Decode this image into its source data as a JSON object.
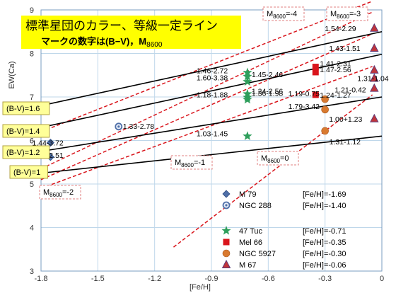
{
  "chart_data": {
    "type": "scatter",
    "title_line1": "標準星団のカラー、等級一定ライン",
    "title_line2": "マークの数字は(B−V)，M",
    "title_line2_sub": "8600",
    "xlabel": "[Fe/H]",
    "ylabel": "EW(Ca)",
    "xlim": [
      -1.8,
      0
    ],
    "ylim": [
      3,
      9
    ],
    "x_ticks": [
      "-1.8",
      "-1.5",
      "-1.2",
      "-0.9",
      "-0.6",
      "-0.3",
      "0"
    ],
    "y_ticks": [
      "3",
      "4",
      "5",
      "6",
      "7",
      "8",
      "9"
    ],
    "grid": true,
    "colors": {
      "M 79": "#4f6fa8",
      "NGC 288": "#4f6fa8",
      "47 Tuc": "#2e9e5b",
      "Mel 66": "#d9141b",
      "NGC 5927": "#d97a30",
      "M 67": "#c0353b",
      "color_lines": "#000000",
      "mag_lines": "#d9141b",
      "title_bg": "#ffff00",
      "bv_bg": "#ffff99"
    },
    "series": [
      {
        "name": "M 79",
        "feh": "[Fe/H]=-1.69",
        "marker": "diamond",
        "points": [
          {
            "x": -1.75,
            "y": 5.95,
            "label": "1.44-3.72"
          },
          {
            "x": -1.75,
            "y": 5.62,
            "label": "1.06-2.51"
          }
        ]
      },
      {
        "name": "NGC 288",
        "feh": "[Fe/H]=-1.40",
        "marker": "circle-dot",
        "points": [
          {
            "x": -1.39,
            "y": 6.32,
            "label": "1.33-2.78"
          }
        ]
      },
      {
        "name": "47 Tuc",
        "feh": "[Fe/H]=-0.71",
        "marker": "star",
        "points": [
          {
            "x": -0.71,
            "y": 7.56,
            "label": "1.46-2.72"
          },
          {
            "x": -0.71,
            "y": 7.47,
            "label": "1.45-2.46"
          },
          {
            "x": -0.71,
            "y": 7.35,
            "label": "1.60-3.38"
          },
          {
            "x": -0.71,
            "y": 7.07,
            "label": "1.24-2.56"
          },
          {
            "x": -0.71,
            "y": 6.99,
            "label": "1.36-1.98"
          },
          {
            "x": -0.71,
            "y": 6.94,
            "label": "1.18-1.88"
          },
          {
            "x": -0.71,
            "y": 6.1,
            "label": "1.03-1.45"
          }
        ]
      },
      {
        "name": "Mel 66",
        "feh": "[Fe/H]=-0.35",
        "marker": "square",
        "points": [
          {
            "x": -0.35,
            "y": 7.69,
            "label": "1.41-2.31"
          },
          {
            "x": -0.35,
            "y": 7.57,
            "label": "1.47-2.56"
          },
          {
            "x": -0.35,
            "y": 7.05,
            "label": "1.24-1.27"
          }
        ]
      },
      {
        "name": "NGC 5927",
        "feh": "[Fe/H]=-0.30",
        "marker": "circle",
        "points": [
          {
            "x": -0.3,
            "y": 6.95,
            "label": "1.19-0.75"
          },
          {
            "x": -0.3,
            "y": 6.71,
            "label": "1.79-3.42"
          },
          {
            "x": -0.3,
            "y": 6.22,
            "label": "1.31-1.12"
          }
        ]
      },
      {
        "name": "M 67",
        "feh": "[Fe/H]=-0.06",
        "marker": "triangle",
        "points": [
          {
            "x": -0.04,
            "y": 8.58,
            "label": "1.54-2.29"
          },
          {
            "x": -0.04,
            "y": 8.12,
            "label": "1.43-1.51"
          },
          {
            "x": -0.04,
            "y": 7.62,
            "label": ""
          },
          {
            "x": -0.04,
            "y": 7.43,
            "label": "1.31-1.04"
          },
          {
            "x": -0.04,
            "y": 7.2,
            "label": "1.21-0.42"
          },
          {
            "x": -0.04,
            "y": 6.5,
            "label": "1.00+1.23"
          }
        ]
      }
    ],
    "color_lines": [
      {
        "label": "(B-V)=1.6",
        "y_start": 6.8,
        "y_end": 8.5
      },
      {
        "label": "(B-V)=1.4",
        "y_start": 6.3,
        "y_end": 7.98
      },
      {
        "label": "(B-V)=1.2",
        "y_start": 5.75,
        "y_end": 7.0
      },
      {
        "label": "(B-V)=1",
        "y_start": 5.25,
        "y_end": 6.1
      }
    ],
    "mag_lines": [
      {
        "label": "M",
        "sub": "8600",
        "value": "=-4",
        "x_start": -1.8,
        "y_start": 6.2,
        "x_end": -0.05,
        "y_end": 9.2
      },
      {
        "label": "M",
        "sub": "8600",
        "value": "=-3",
        "x_start": -1.8,
        "y_start": 5.35,
        "x_end": -0.05,
        "y_end": 8.95
      },
      {
        "label": "M",
        "sub": "8600",
        "value": "=-1",
        "x_start": -1.8,
        "y_start": 4.9,
        "x_end": -0.05,
        "y_end": 7.7
      },
      {
        "label": "M",
        "sub": "8600",
        "value": "=0",
        "x_start": -1.1,
        "y_start": 3.55,
        "x_end": -0.05,
        "y_end": 7.05
      },
      {
        "label": "M",
        "sub": "8600",
        "value": "=-2",
        "x_start": -1.8,
        "y_start": 5.1,
        "x_end": -0.05,
        "y_end": 8.45
      }
    ]
  }
}
